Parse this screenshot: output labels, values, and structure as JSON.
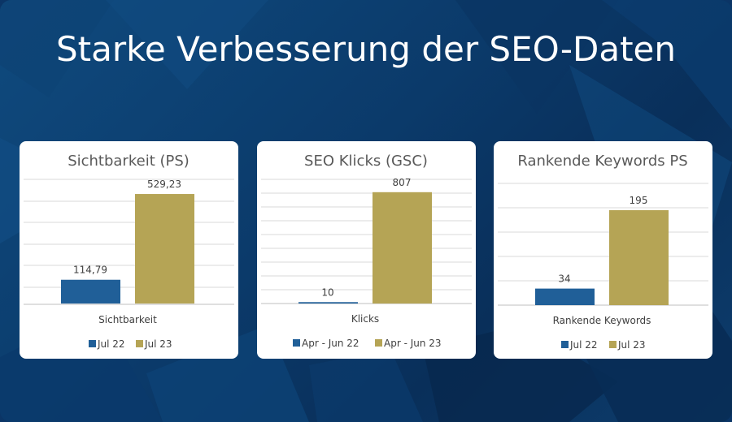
{
  "slide": {
    "title": "Starke Verbesserung der SEO-Daten"
  },
  "colors": {
    "series1": "#205f98",
    "series2": "#b5a455",
    "background": "#0b3a6a",
    "grid": "#d9d9d9"
  },
  "chart_data": [
    {
      "type": "bar",
      "title": "Sichtbarkeit (PS)",
      "categories": [
        "Sichtbarkeit"
      ],
      "series": [
        {
          "name": "Jul 22",
          "values": [
            114.79
          ],
          "labels": [
            "114,79"
          ]
        },
        {
          "name": "Jul 23",
          "values": [
            529.23
          ],
          "labels": [
            "529,23"
          ]
        }
      ],
      "ylim": [
        0,
        600
      ],
      "grid": true,
      "legend": "bottom"
    },
    {
      "type": "bar",
      "title": "SEO Klicks (GSC)",
      "categories": [
        "Klicks"
      ],
      "series": [
        {
          "name": "Apr - Jun 22",
          "values": [
            10
          ],
          "labels": [
            "10"
          ]
        },
        {
          "name": "Apr - Jun 23",
          "values": [
            807
          ],
          "labels": [
            "807"
          ]
        }
      ],
      "ylim": [
        0,
        900
      ],
      "grid": true,
      "legend": "bottom"
    },
    {
      "type": "bar",
      "title": "Rankende Keywords PS",
      "categories": [
        "Rankende Keywords"
      ],
      "series": [
        {
          "name": "Jul 22",
          "values": [
            34
          ],
          "labels": [
            "34"
          ]
        },
        {
          "name": "Jul 23",
          "values": [
            195
          ],
          "labels": [
            "195"
          ]
        }
      ],
      "ylim": [
        0,
        250
      ],
      "grid": true,
      "legend": "bottom"
    }
  ]
}
